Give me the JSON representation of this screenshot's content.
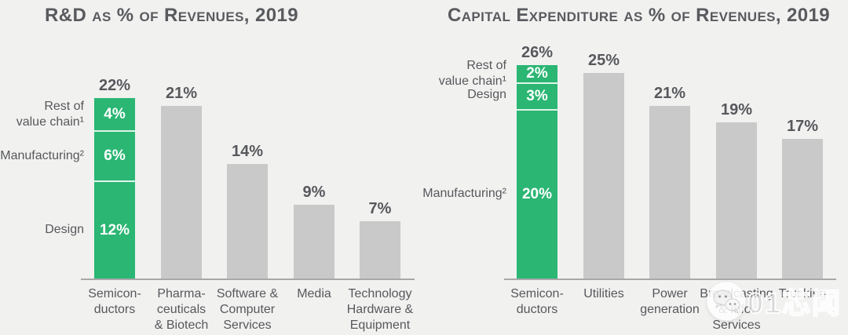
{
  "page": {
    "background": "#f1f1f0"
  },
  "colors": {
    "highlight_green": "#2bb673",
    "bar_gray": "#c9c9c9",
    "text_gray": "#57585c",
    "axis_gray": "#a8a8a8",
    "segment_divider": "#ffffff",
    "segment_text": "#ffffff"
  },
  "watermark": {
    "icon": "wechat-icon",
    "text": "01芯闻"
  },
  "chart_data": [
    {
      "type": "bar",
      "title": "R&D as % of Revenues, 2019",
      "xlabel": "",
      "ylabel": "",
      "unit": "%",
      "grid": false,
      "ylim": [
        0,
        26
      ],
      "categories": [
        "Semiconductors",
        "Pharmaceuticals & Biotech",
        "Software & Computer Services",
        "Media",
        "Technology Hardware & Equipment"
      ],
      "bars": [
        {
          "category_lines": [
            "Semicon-",
            "ductors"
          ],
          "value": 22,
          "value_label": "22%",
          "highlighted": true,
          "segments": [
            {
              "name": "Rest of value chain¹",
              "name_lines": [
                "Rest of",
                "value chain¹"
              ],
              "value": 4,
              "value_label": "4%"
            },
            {
              "name": "Manufacturing²",
              "name_lines": [
                "Manufacturing²"
              ],
              "value": 6,
              "value_label": "6%"
            },
            {
              "name": "Design",
              "name_lines": [
                "Design"
              ],
              "value": 12,
              "value_label": "12%"
            }
          ]
        },
        {
          "category_lines": [
            "Pharma-",
            "ceuticals",
            "& Biotech"
          ],
          "value": 21,
          "value_label": "21%"
        },
        {
          "category_lines": [
            "Software &",
            "Computer",
            "Services"
          ],
          "value": 14,
          "value_label": "14%"
        },
        {
          "category_lines": [
            "Media"
          ],
          "value": 9,
          "value_label": "9%"
        },
        {
          "category_lines": [
            "Technology",
            "Hardware &",
            "Equipment"
          ],
          "value": 7,
          "value_label": "7%"
        }
      ]
    },
    {
      "type": "bar",
      "title": "Capital Expenditure as % of Revenues, 2019",
      "xlabel": "",
      "ylabel": "",
      "unit": "%",
      "grid": false,
      "ylim": [
        0,
        26
      ],
      "categories": [
        "Semiconductors",
        "Utilities",
        "Power generation",
        "Broadcasting & Info. Services",
        "Trucking"
      ],
      "bars": [
        {
          "category_lines": [
            "Semicon-",
            "ductors"
          ],
          "value": 26,
          "value_label": "26%",
          "highlighted": true,
          "segments": [
            {
              "name": "Rest of value chain¹",
              "name_lines": [
                "Rest of",
                "value chain¹"
              ],
              "value": 2,
              "value_label": "2%"
            },
            {
              "name": "Design",
              "name_lines": [
                "Design"
              ],
              "value": 3,
              "value_label": "3%"
            },
            {
              "name": "Manufacturing²",
              "name_lines": [
                "Manufacturing²"
              ],
              "value": 20,
              "value_label": "20%"
            }
          ]
        },
        {
          "category_lines": [
            "Utilities"
          ],
          "value": 25,
          "value_label": "25%"
        },
        {
          "category_lines": [
            "Power",
            "generation"
          ],
          "value": 21,
          "value_label": "21%"
        },
        {
          "category_lines": [
            "Broadcasting",
            "& Info.",
            "Services"
          ],
          "value": 19,
          "value_label": "19%"
        },
        {
          "category_lines": [
            "Trucking"
          ],
          "value": 17,
          "value_label": "17%"
        }
      ]
    }
  ]
}
